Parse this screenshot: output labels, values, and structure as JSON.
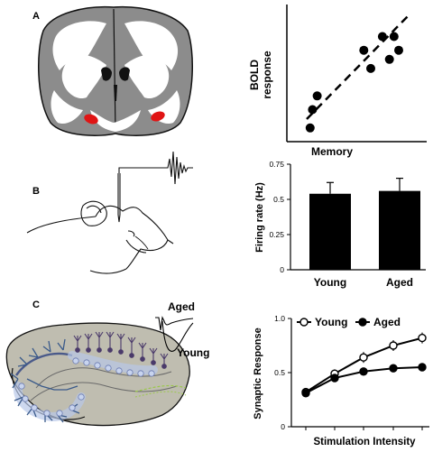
{
  "panels": {
    "a_label": "A",
    "b_label": "B",
    "c_label": "C"
  },
  "colors": {
    "brain_gray": "#8c8c8c",
    "brain_white": "#ffffff",
    "hippocampus_red": "#e01414",
    "slice_bg": "#bfbdb0",
    "neuron_blue": "#3a5a8a",
    "ca_purple": "#4a3a6a",
    "bar": "#000000"
  },
  "scatter": {
    "ylabel_line1": "BOLD",
    "ylabel_line2": "response",
    "xlabel": "Memory"
  },
  "c_inset": {
    "aged": "Aged",
    "young": "Young"
  },
  "chart_data": [
    {
      "type": "scatter",
      "xlabel": "Memory",
      "ylabel": "BOLD response",
      "x": [
        1.0,
        1.3,
        1.1,
        3.6,
        3.3,
        4.1,
        4.6,
        4.8,
        4.4
      ],
      "y": [
        0.6,
        2.0,
        1.4,
        3.2,
        4.0,
        4.6,
        4.6,
        4.0,
        3.6
      ],
      "trend_line": true,
      "xlim": [
        0,
        6
      ],
      "ylim": [
        0,
        6
      ]
    },
    {
      "type": "bar",
      "title": "",
      "ylabel": "Firing rate (Hz)",
      "categories": [
        "Young",
        "Aged"
      ],
      "values": [
        0.54,
        0.56
      ],
      "errors": [
        0.08,
        0.09
      ],
      "ylim": [
        0,
        0.75
      ],
      "yticks": [
        "0",
        "0.25",
        "0.5",
        "0.75"
      ]
    },
    {
      "type": "line",
      "xlabel": "Stimulation Intensity",
      "ylabel": "Synaptic Response",
      "yticks": [
        "0",
        "0.5",
        "1.0"
      ],
      "ylim": [
        0,
        1.0
      ],
      "x": [
        1,
        2,
        3,
        4,
        5
      ],
      "series": [
        {
          "name": "Young",
          "values": [
            0.32,
            0.49,
            0.64,
            0.75,
            0.82
          ],
          "errors": [
            0.02,
            0.04,
            0.05,
            0.05,
            0.05
          ]
        },
        {
          "name": "Aged",
          "values": [
            0.31,
            0.45,
            0.51,
            0.54,
            0.55
          ],
          "errors": [
            0.02,
            0.02,
            0.02,
            0.02,
            0.02
          ]
        }
      ]
    }
  ]
}
